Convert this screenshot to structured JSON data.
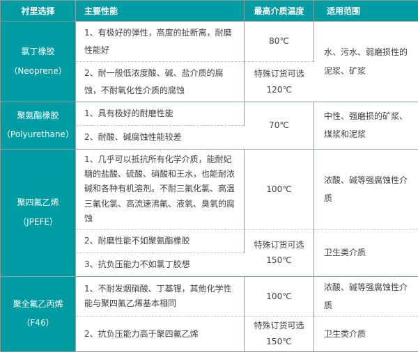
{
  "colors": {
    "accent_teal": "#009ca4",
    "grid_line": "#919e9e",
    "dashed_line": "#c3c3c3",
    "body_text": "#404040"
  },
  "table": {
    "headers": [
      "衬里选择",
      "主要性能",
      "最高介质温度",
      "适用范围"
    ],
    "groups": [
      {
        "name_cn": "氯丁橡胶",
        "name_en": "（Neoprene）",
        "range": "水、污水、弱磨损性的泥浆、矿浆",
        "rows": [
          {
            "perf": "1、有极好的弹性，高度的扯断离，耐磨性能好",
            "temp": "80℃"
          },
          {
            "perf": "2、耐一般低浓度酸、碱、盐介质的腐蚀，不耐氧化性介质的腐蚀",
            "temp_l1": "特殊订货可选",
            "temp_l2": "120℃"
          }
        ]
      },
      {
        "name_cn": "聚氨酯橡胶",
        "name_en": "（Polyurethane）",
        "range": "中性、强磨损的矿浆、煤浆和泥浆",
        "temp": "70℃",
        "rows": [
          {
            "perf": "1、具有极好的耐磨性能"
          },
          {
            "perf": "2、耐酸、碱腐蚀性能较差"
          }
        ]
      },
      {
        "name_cn": "聚四氟乙烯",
        "name_en": "（JPEFE）",
        "rows": [
          {
            "perf": "1、几乎可以抵抗所有化学介质，能耐妃糖的盐酸、硫酸、硝酸和王水，也能耐浓碱和各种有机溶剂。不耐三氟化氯、高温三氟化氯、高流速沸氟、液氧、臭氧的腐蚀",
            "temp": "100℃",
            "range": "浓酸、碱等强腐蚀性介质"
          },
          {
            "perf": "2、耐磨性能不如聚氨酯橡胶",
            "temp_l1": "特殊订货可选",
            "temp_l2": "150℃",
            "range": "卫生类介质"
          },
          {
            "perf": "3、抗负压能力不如氯丁胶想"
          }
        ]
      },
      {
        "name_cn": "聚全氟乙丙烯",
        "name_en": "（F46）",
        "rows": [
          {
            "perf": "1、不耐发烟硝酸、丁基锂，其他化学性能与聚四氟乙烯基本相同",
            "temp": "100℃",
            "range": "浓酸、碱等强腐蚀性介质"
          },
          {
            "perf": "2、抗负压能力高于聚四氟乙烯",
            "temp_l1": "特殊订货可选",
            "temp_l2": "150℃",
            "range": "卫生类介质"
          }
        ]
      }
    ]
  }
}
